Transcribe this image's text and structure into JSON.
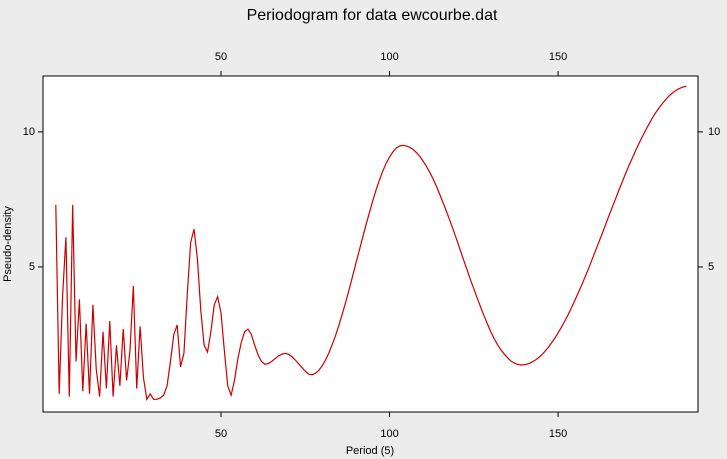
{
  "chart_data": {
    "type": "line",
    "title": "Periodogram for data ewcourbe.dat",
    "x_label": "Period (5)",
    "y_label": "Pseudo-density",
    "color": "#cc0000",
    "x": [
      1,
      2,
      3,
      4,
      5,
      6,
      7,
      8,
      9,
      10,
      11,
      12,
      13,
      14,
      15,
      16,
      17,
      18,
      19,
      20,
      21,
      22,
      23,
      24,
      25,
      26,
      27,
      28,
      29,
      30,
      31,
      32,
      33,
      34,
      35,
      36,
      37,
      38,
      39,
      40,
      41,
      42,
      43,
      44,
      45,
      46,
      47,
      48,
      49,
      50,
      51,
      52,
      53,
      54,
      55,
      56,
      57,
      58,
      59,
      60,
      61,
      62,
      63,
      64,
      65,
      66,
      67,
      68,
      69,
      70,
      71,
      72,
      73,
      74,
      75,
      76,
      77,
      78,
      79,
      80,
      81,
      82,
      83,
      84,
      85,
      86,
      87,
      88,
      89,
      90,
      91,
      92,
      93,
      94,
      95,
      96,
      97,
      98,
      99,
      100,
      101,
      102,
      103,
      104,
      105,
      106,
      107,
      108,
      109,
      110,
      111,
      112,
      113,
      114,
      115,
      116,
      117,
      118,
      119,
      120,
      121,
      122,
      123,
      124,
      125,
      126,
      127,
      128,
      129,
      130,
      131,
      132,
      133,
      134,
      135,
      136,
      137,
      138,
      139,
      140,
      141,
      142,
      143,
      144,
      145,
      146,
      147,
      148,
      149,
      150,
      151,
      152,
      153,
      154,
      155,
      156,
      157,
      158,
      159,
      160,
      161,
      162,
      163,
      164,
      165,
      166,
      167,
      168,
      169,
      170,
      171,
      172,
      173,
      174,
      175,
      176,
      177,
      178,
      179,
      180,
      181,
      182,
      183,
      184,
      185,
      186,
      187,
      188
    ],
    "values": [
      7.3,
      0.3,
      3.9,
      6.1,
      0.2,
      7.3,
      1.5,
      3.8,
      0.4,
      2.9,
      0.3,
      3.6,
      1.2,
      0.2,
      2.6,
      0.5,
      3.0,
      0.2,
      2.1,
      0.6,
      2.7,
      0.8,
      1.9,
      4.3,
      0.5,
      2.8,
      0.9,
      0.1,
      0.3,
      0.1,
      0.1,
      0.15,
      0.25,
      0.6,
      1.5,
      2.5,
      2.85,
      1.3,
      1.8,
      4.0,
      5.9,
      6.4,
      5.3,
      3.4,
      2.1,
      1.85,
      2.6,
      3.6,
      3.9,
      3.3,
      1.9,
      0.6,
      0.25,
      0.8,
      1.6,
      2.2,
      2.6,
      2.7,
      2.5,
      2.1,
      1.75,
      1.5,
      1.4,
      1.42,
      1.5,
      1.6,
      1.7,
      1.77,
      1.8,
      1.77,
      1.68,
      1.56,
      1.42,
      1.28,
      1.14,
      1.03,
      1.01,
      1.06,
      1.17,
      1.34,
      1.55,
      1.82,
      2.13,
      2.47,
      2.85,
      3.27,
      3.7,
      4.16,
      4.64,
      5.13,
      5.6,
      6.08,
      6.55,
      7.0,
      7.44,
      7.85,
      8.22,
      8.55,
      8.84,
      9.07,
      9.26,
      9.4,
      9.48,
      9.5,
      9.48,
      9.43,
      9.35,
      9.23,
      9.09,
      8.91,
      8.71,
      8.49,
      8.24,
      7.96,
      7.65,
      7.34,
      7.02,
      6.68,
      6.34,
      5.98,
      5.61,
      5.25,
      4.89,
      4.53,
      4.19,
      3.85,
      3.52,
      3.2,
      2.9,
      2.61,
      2.35,
      2.13,
      1.94,
      1.78,
      1.64,
      1.52,
      1.44,
      1.39,
      1.37,
      1.38,
      1.41,
      1.46,
      1.53,
      1.62,
      1.73,
      1.86,
      2.01,
      2.18,
      2.36,
      2.56,
      2.77,
      3.0,
      3.24,
      3.5,
      3.77,
      4.05,
      4.33,
      4.63,
      4.93,
      5.25,
      5.57,
      5.89,
      6.21,
      6.54,
      6.87,
      7.19,
      7.51,
      7.83,
      8.14,
      8.45,
      8.75,
      9.03,
      9.31,
      9.57,
      9.83,
      10.07,
      10.3,
      10.52,
      10.72,
      10.9,
      11.06,
      11.21,
      11.34,
      11.45,
      11.54,
      11.61,
      11.66,
      11.69
    ],
    "xlim": [
      -2.8,
      191.5
    ],
    "ylim": [
      -0.37,
      12.07
    ],
    "xticks": [
      50,
      100,
      150
    ],
    "yticks": [
      5,
      10
    ]
  }
}
